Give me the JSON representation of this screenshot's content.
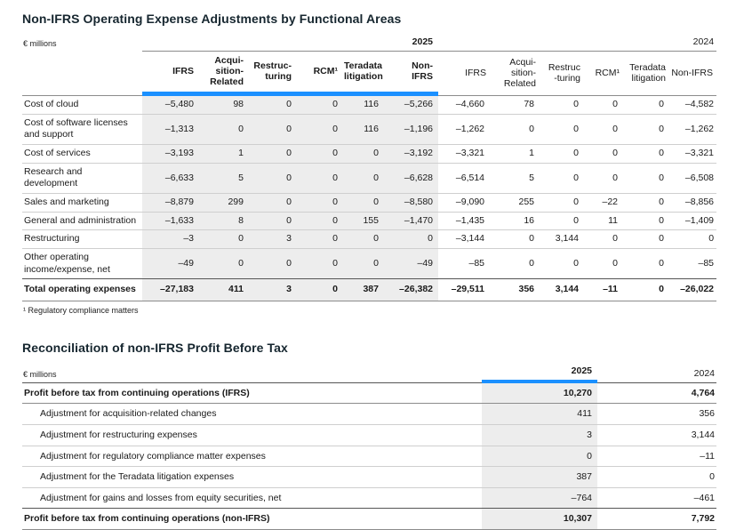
{
  "colors": {
    "accent_blue": "#1b90ff",
    "shaded_column_bg": "#ededed"
  },
  "table1": {
    "title": "Non-IFRS Operating Expense Adjustments by Functional Areas",
    "unit": "€ millions",
    "years": [
      "2025",
      "2024"
    ],
    "col_headers_2025": [
      [
        "IFRS"
      ],
      [
        "Acqui-",
        "sition-",
        "Related"
      ],
      [
        "Restruc-",
        "turing"
      ],
      [
        "RCM¹"
      ],
      [
        "Teradata",
        "litigation"
      ],
      [
        "Non-",
        "IFRS"
      ]
    ],
    "col_headers_2024": [
      [
        "IFRS"
      ],
      [
        "Acqui-",
        "sition-",
        "Related"
      ],
      [
        "Restruc",
        "-turing"
      ],
      [
        "RCM¹"
      ],
      [
        "Teradata",
        "litigation"
      ],
      [
        "Non-IFRS"
      ]
    ],
    "rows": [
      {
        "label": "Cost of cloud",
        "y2025": [
          "–5,480",
          "98",
          "0",
          "0",
          "116",
          "–5,266"
        ],
        "y2024": [
          "–4,660",
          "78",
          "0",
          "0",
          "0",
          "–4,582"
        ],
        "total": false
      },
      {
        "label": "Cost of software licenses and support",
        "y2025": [
          "–1,313",
          "0",
          "0",
          "0",
          "116",
          "–1,196"
        ],
        "y2024": [
          "–1,262",
          "0",
          "0",
          "0",
          "0",
          "–1,262"
        ],
        "total": false
      },
      {
        "label": "Cost of services",
        "y2025": [
          "–3,193",
          "1",
          "0",
          "0",
          "0",
          "–3,192"
        ],
        "y2024": [
          "–3,321",
          "1",
          "0",
          "0",
          "0",
          "–3,321"
        ],
        "total": false
      },
      {
        "label": "Research and development",
        "y2025": [
          "–6,633",
          "5",
          "0",
          "0",
          "0",
          "–6,628"
        ],
        "y2024": [
          "–6,514",
          "5",
          "0",
          "0",
          "0",
          "–6,508"
        ],
        "total": false
      },
      {
        "label": "Sales and marketing",
        "y2025": [
          "–8,879",
          "299",
          "0",
          "0",
          "0",
          "–8,580"
        ],
        "y2024": [
          "–9,090",
          "255",
          "0",
          "–22",
          "0",
          "–8,856"
        ],
        "total": false
      },
      {
        "label": "General and administration",
        "y2025": [
          "–1,633",
          "8",
          "0",
          "0",
          "155",
          "–1,470"
        ],
        "y2024": [
          "–1,435",
          "16",
          "0",
          "11",
          "0",
          "–1,409"
        ],
        "total": false
      },
      {
        "label": "Restructuring",
        "y2025": [
          "–3",
          "0",
          "3",
          "0",
          "0",
          "0"
        ],
        "y2024": [
          "–3,144",
          "0",
          "3,144",
          "0",
          "0",
          "0"
        ],
        "total": false
      },
      {
        "label": "Other operating income/expense, net",
        "y2025": [
          "–49",
          "0",
          "0",
          "0",
          "0",
          "–49"
        ],
        "y2024": [
          "–85",
          "0",
          "0",
          "0",
          "0",
          "–85"
        ],
        "total": false
      },
      {
        "label": "Total operating expenses",
        "y2025": [
          "–27,183",
          "411",
          "3",
          "0",
          "387",
          "–26,382"
        ],
        "y2024": [
          "–29,511",
          "356",
          "3,144",
          "–11",
          "0",
          "–26,022"
        ],
        "total": true
      }
    ],
    "footnote": "¹ Regulatory compliance matters"
  },
  "table2": {
    "title": "Reconciliation of non-IFRS Profit Before Tax",
    "unit": "€ millions",
    "years": [
      "2025",
      "2024"
    ],
    "rows": [
      {
        "label": "Profit before tax from continuing operations (IFRS)",
        "v2025": "10,270",
        "v2024": "4,764",
        "bold": true,
        "indent": false
      },
      {
        "label": "Adjustment for acquisition-related changes",
        "v2025": "411",
        "v2024": "356",
        "bold": false,
        "indent": true
      },
      {
        "label": "Adjustment for restructuring expenses",
        "v2025": "3",
        "v2024": "3,144",
        "bold": false,
        "indent": true
      },
      {
        "label": "Adjustment for regulatory compliance matter expenses",
        "v2025": "0",
        "v2024": "–11",
        "bold": false,
        "indent": true
      },
      {
        "label": "Adjustment for the Teradata litigation expenses",
        "v2025": "387",
        "v2024": "0",
        "bold": false,
        "indent": true
      },
      {
        "label": "Adjustment for gains and losses from equity securities, net",
        "v2025": "–764",
        "v2024": "–461",
        "bold": false,
        "indent": true
      },
      {
        "label": "Profit before tax from continuing operations (non-IFRS)",
        "v2025": "10,307",
        "v2024": "7,792",
        "bold": true,
        "indent": false
      }
    ]
  }
}
